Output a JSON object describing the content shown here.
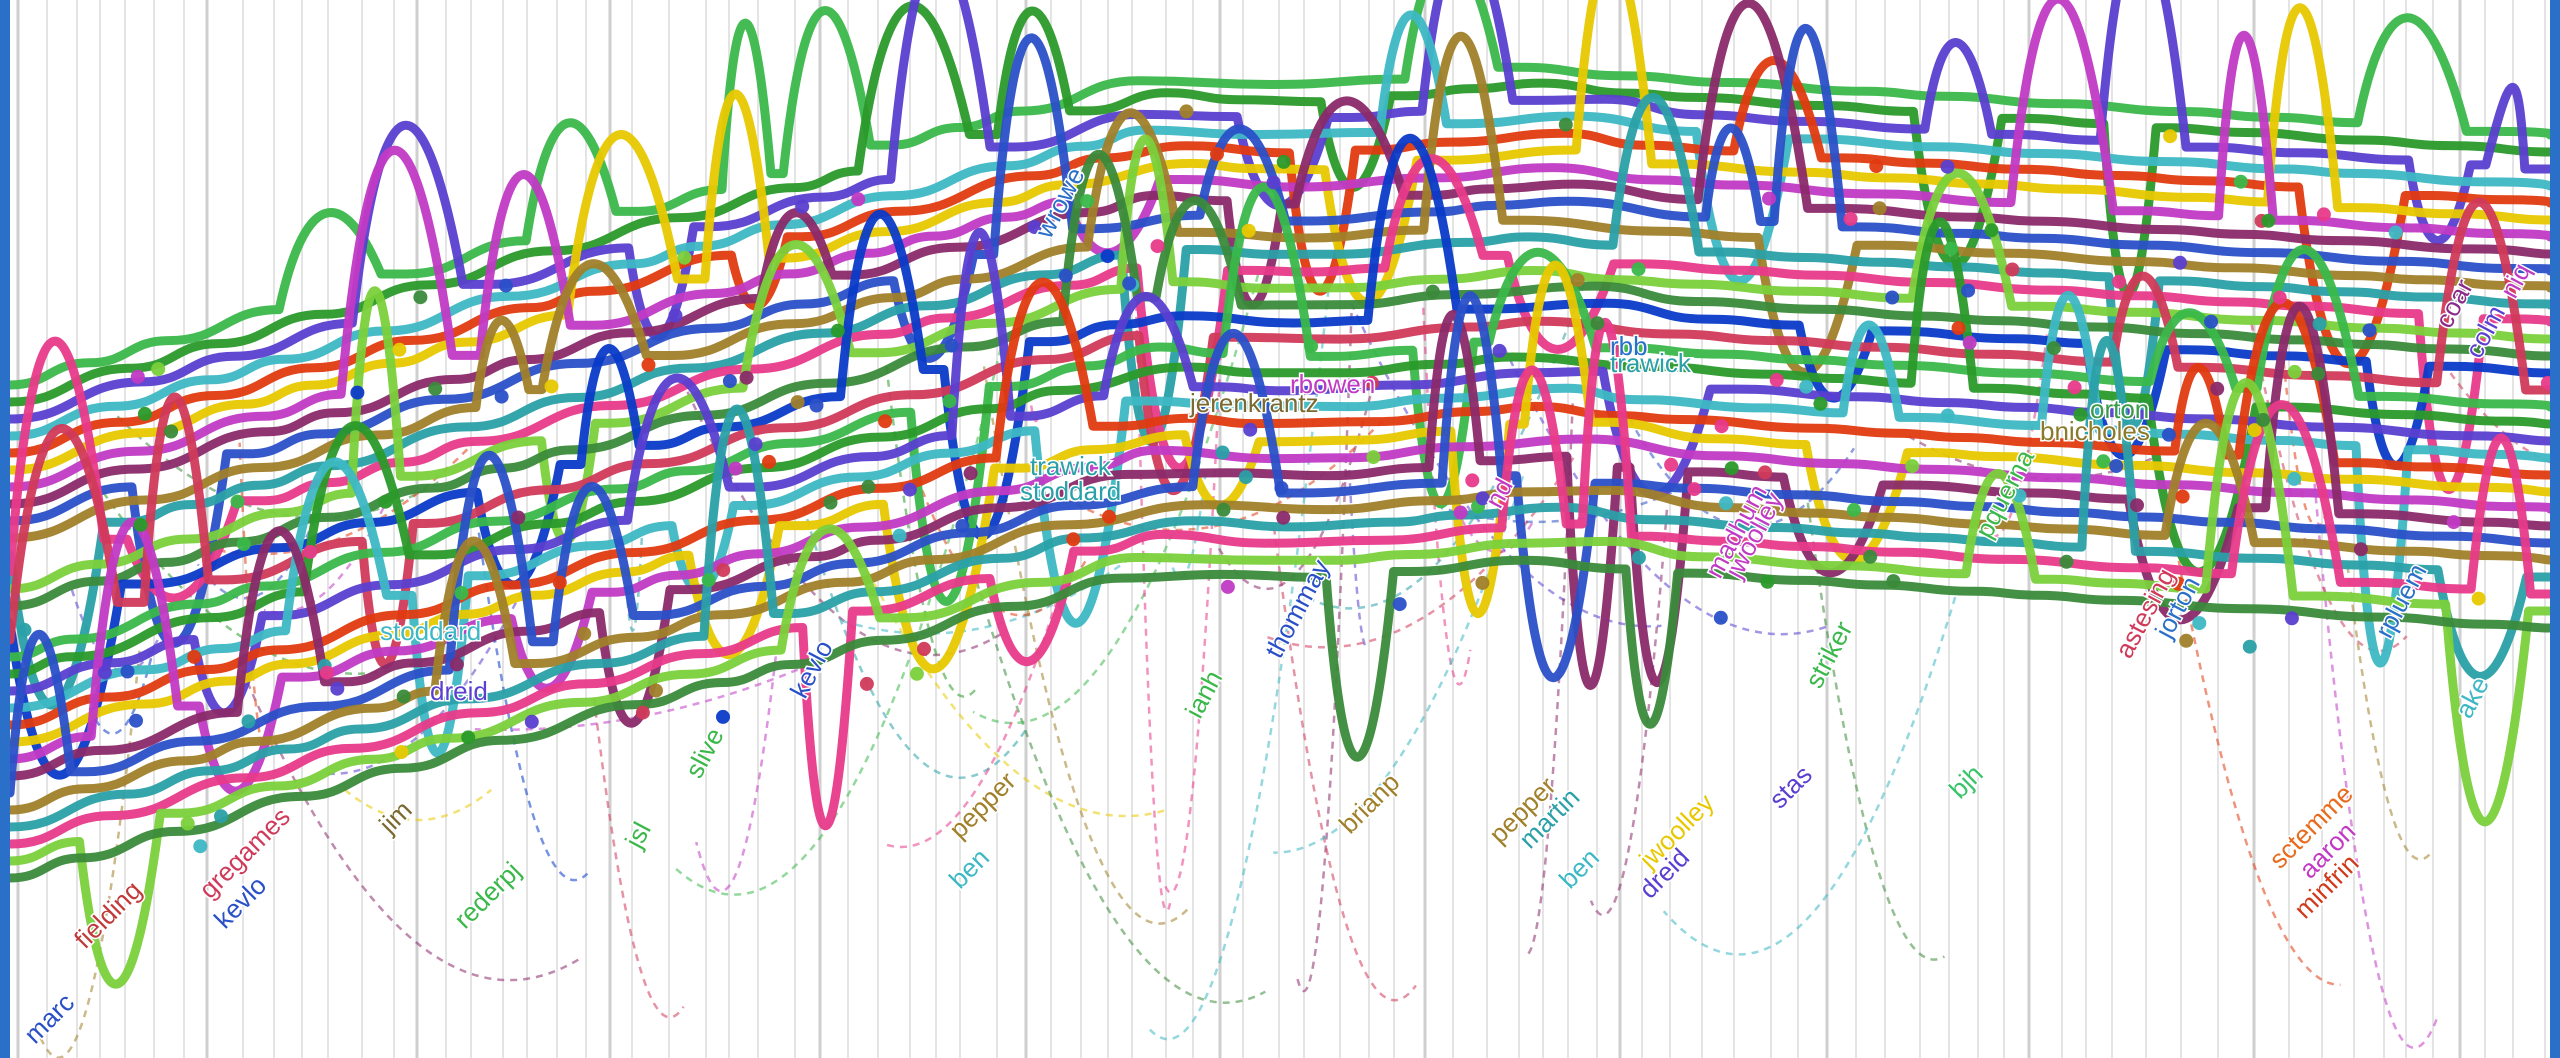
{
  "labels": [
    {
      "text": "stoddard",
      "color": "#3db8c4"
    },
    {
      "text": "dreid",
      "color": "#5a3fd0"
    },
    {
      "text": "jerenkrantz",
      "color": "#7a6a30"
    },
    {
      "text": "rbowen",
      "color": "#c13ac4"
    },
    {
      "text": "trawick",
      "color": "#2aa0a8"
    },
    {
      "text": "stoddard",
      "color": "#2aa0a8"
    },
    {
      "text": "trawick",
      "color": "#2aa0a8"
    },
    {
      "text": "orton",
      "color": "#3a9a4a"
    },
    {
      "text": "bnicholes",
      "color": "#8a7a2a"
    },
    {
      "text": "rbb",
      "color": "#2a6fc8"
    },
    {
      "text": "thommay",
      "color": "#2a50c8"
    },
    {
      "text": "brianp",
      "color": "#a0802a"
    },
    {
      "text": "pepper",
      "color": "#a0802a"
    },
    {
      "text": "martin",
      "color": "#2aa0a8"
    },
    {
      "text": "ben",
      "color": "#3db8c4"
    },
    {
      "text": "dreid",
      "color": "#5a3fd0"
    },
    {
      "text": "jwoolley",
      "color": "#e8c800"
    },
    {
      "text": "stas",
      "color": "#5a3fd0"
    },
    {
      "text": "bjh",
      "color": "#3ac46a"
    },
    {
      "text": "striker",
      "color": "#3ab84a"
    },
    {
      "text": "sctemme",
      "color": "#e86a1a"
    },
    {
      "text": "aaron",
      "color": "#c13ac4"
    },
    {
      "text": "minfrin",
      "color": "#d03a1a"
    },
    {
      "text": "astesing",
      "color": "#d03a5a"
    },
    {
      "text": "jwoolley",
      "color": "#c13ac4"
    },
    {
      "text": "pepper",
      "color": "#a0802a"
    },
    {
      "text": "ben",
      "color": "#3db8c4"
    },
    {
      "text": "kevlo",
      "color": "#2a50c8"
    },
    {
      "text": "gregames",
      "color": "#d03a5a"
    },
    {
      "text": "rederpj",
      "color": "#3ab84a"
    },
    {
      "text": "marc",
      "color": "#2a50c8"
    },
    {
      "text": "fielding",
      "color": "#c03a3a"
    },
    {
      "text": "jim",
      "color": "#7a6a30"
    },
    {
      "text": "kevlo",
      "color": "#2a50c8"
    },
    {
      "text": "jsl",
      "color": "#3ab84a"
    },
    {
      "text": "slive",
      "color": "#3ab84a"
    },
    {
      "text": "nd",
      "color": "#c13ac4"
    },
    {
      "text": "ake",
      "color": "#3db8c4"
    },
    {
      "text": "colm",
      "color": "#5a3fd0"
    },
    {
      "text": "coar",
      "color": "#8a2a8a"
    },
    {
      "text": "wrowe",
      "color": "#2a6fc8"
    },
    {
      "text": "ianh",
      "color": "#3ab84a"
    },
    {
      "text": "madhum",
      "color": "#c13ac4"
    },
    {
      "text": "pquerna",
      "color": "#3ab84a"
    },
    {
      "text": "jorton",
      "color": "#2a6fc8"
    },
    {
      "text": "rpluem",
      "color": "#2a6fc8"
    },
    {
      "text": "niq",
      "color": "#c13ac4"
    }
  ],
  "series_colors": [
    "#3ab84a",
    "#2a9a2a",
    "#5a3fd0",
    "#3db8c4",
    "#e03a10",
    "#e8c800",
    "#c13ac4",
    "#8a2a6a",
    "#2a50c8",
    "#a0802a",
    "#2aa0a8",
    "#e83a8a",
    "#7ad03a",
    "#3a8a3a",
    "#0a3ac8",
    "#d03a5a"
  ]
}
